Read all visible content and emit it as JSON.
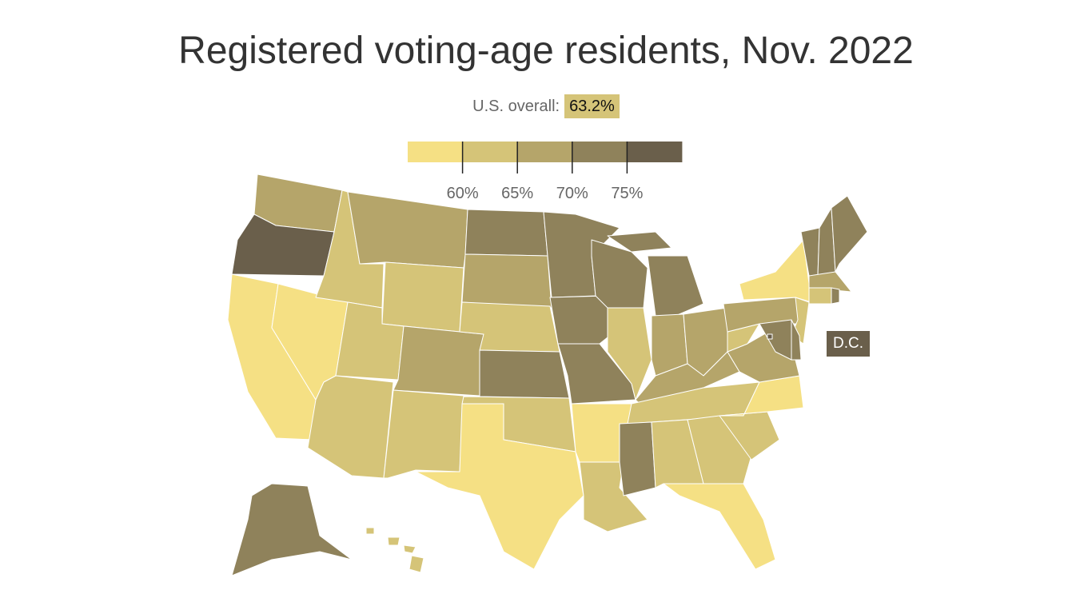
{
  "title": "Registered voting-age residents, Nov. 2022",
  "overall": {
    "label": "U.S. overall:",
    "value": "63.2%"
  },
  "legend": {
    "ticks": [
      "60%",
      "65%",
      "70%",
      "75%"
    ],
    "colors": [
      "#f5e084",
      "#d5c478",
      "#b5a56a",
      "#8f825b",
      "#6a5f4b"
    ],
    "bins": [
      "<60%",
      "60-65%",
      "65-70%",
      "70-75%",
      ">75%"
    ]
  },
  "dc_label": "D.C.",
  "states": {
    "WA": 2,
    "OR": 4,
    "CA": 0,
    "NV": 0,
    "ID": 1,
    "MT": 2,
    "WY": 1,
    "UT": 1,
    "AZ": 1,
    "CO": 2,
    "NM": 1,
    "ND": 3,
    "SD": 2,
    "NE": 1,
    "KS": 3,
    "OK": 1,
    "TX": 0,
    "MN": 3,
    "IA": 3,
    "MO": 3,
    "AR": 0,
    "LA": 1,
    "WI": 3,
    "IL": 1,
    "MI": 3,
    "IN": 2,
    "OH": 2,
    "KY": 2,
    "TN": 1,
    "MS": 3,
    "AL": 1,
    "GA": 1,
    "FL": 0,
    "SC": 1,
    "NC": 0,
    "VA": 2,
    "WV": 1,
    "PA": 2,
    "NY": 0,
    "NJ": 1,
    "DE": 3,
    "MD": 3,
    "DC": 4,
    "CT": 1,
    "RI": 3,
    "MA": 2,
    "VT": 3,
    "NH": 3,
    "ME": 3,
    "AK": 3,
    "HI": 1
  }
}
